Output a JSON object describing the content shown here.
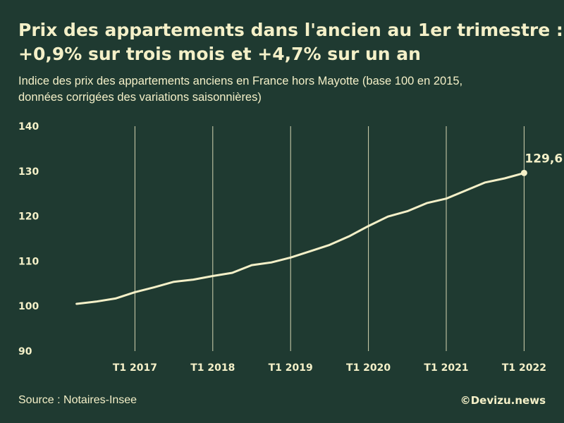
{
  "header": {
    "title_line1": "Prix des appartements dans l'ancien au 1er trimestre :",
    "title_line2": "+0,9% sur trois mois et +4,7% sur un an",
    "subtitle_line1": "Indice des prix des appartements anciens en France hors Mayotte (base 100 en 2015,",
    "subtitle_line2": "données corrigées des variations saisonnières)"
  },
  "footer": {
    "source": "Source : Notaires-Insee",
    "brand": "©Devizu.news"
  },
  "colors": {
    "background": "#1f3a31",
    "foreground": "#f4f0c8"
  },
  "chart_data": {
    "type": "line",
    "title": "Prix des appartements dans l'ancien au 1er trimestre : +0,9% sur trois mois et +4,7% sur un an",
    "subtitle": "Indice des prix des appartements anciens en France hors Mayotte (base 100 en 2015, données corrigées des variations saisonnières)",
    "xlabel": "",
    "ylabel": "",
    "ylim": [
      90,
      140
    ],
    "yticks": [
      90,
      100,
      110,
      120,
      130,
      140
    ],
    "x_ticks": [
      "T1 2017",
      "T1 2018",
      "T1 2019",
      "T1 2020",
      "T1 2021",
      "T1 2022"
    ],
    "grid": "vertical lines at x ticks",
    "x": [
      "T2 2016",
      "T3 2016",
      "T4 2016",
      "T1 2017",
      "T2 2017",
      "T3 2017",
      "T4 2017",
      "T1 2018",
      "T2 2018",
      "T3 2018",
      "T4 2018",
      "T1 2019",
      "T2 2019",
      "T3 2019",
      "T4 2019",
      "T1 2020",
      "T2 2020",
      "T3 2020",
      "T4 2020",
      "T1 2021",
      "T2 2021",
      "T3 2021",
      "T4 2021",
      "T1 2022"
    ],
    "series": [
      {
        "values": [
          100.5,
          101.0,
          101.7,
          103.1,
          104.2,
          105.4,
          105.9,
          106.7,
          107.4,
          109.1,
          109.7,
          110.8,
          112.2,
          113.6,
          115.5,
          117.8,
          119.9,
          121.1,
          122.9,
          123.9,
          125.7,
          127.5,
          128.4,
          129.6
        ]
      }
    ],
    "annotations": [
      {
        "x": "T1 2022",
        "y": 129.6,
        "text": "129,6"
      }
    ]
  }
}
